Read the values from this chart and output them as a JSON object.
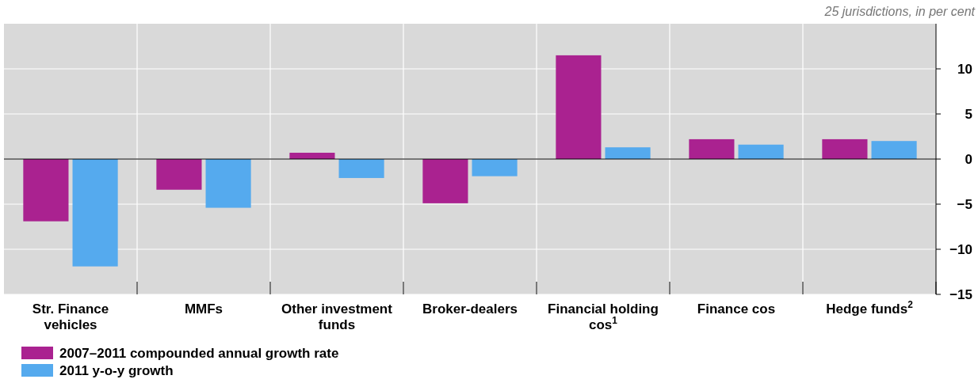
{
  "chart_data": {
    "type": "bar",
    "annotations": [
      "25 jurisdictions, in per cent"
    ],
    "categories": [
      "Str. Finance vehicles",
      "MMFs",
      "Other investment funds",
      "Broker-dealers",
      "Financial holding cos$^{1}$",
      "Finance cos",
      "Hedge funds$^{2}$"
    ],
    "series": [
      {
        "name": "2007–2011 compounded annual growth rate",
        "color": "#aa2290",
        "values": [
          -6.9,
          -3.4,
          0.7,
          -4.9,
          11.5,
          2.2,
          2.2
        ]
      },
      {
        "name": "2011 y-o-y growth",
        "color": "#55aaee",
        "values": [
          -11.9,
          -5.4,
          -2.1,
          -1.9,
          1.3,
          1.6,
          2.0
        ]
      }
    ],
    "ylim": [
      -15,
      15
    ],
    "yticks": [
      10,
      5,
      0,
      {
        "value": -5,
        "label": "−5"
      },
      {
        "value": -10,
        "label": "−10"
      },
      {
        "value": -15,
        "label": "−15"
      }
    ],
    "grid": true,
    "legend": "bottom left"
  }
}
